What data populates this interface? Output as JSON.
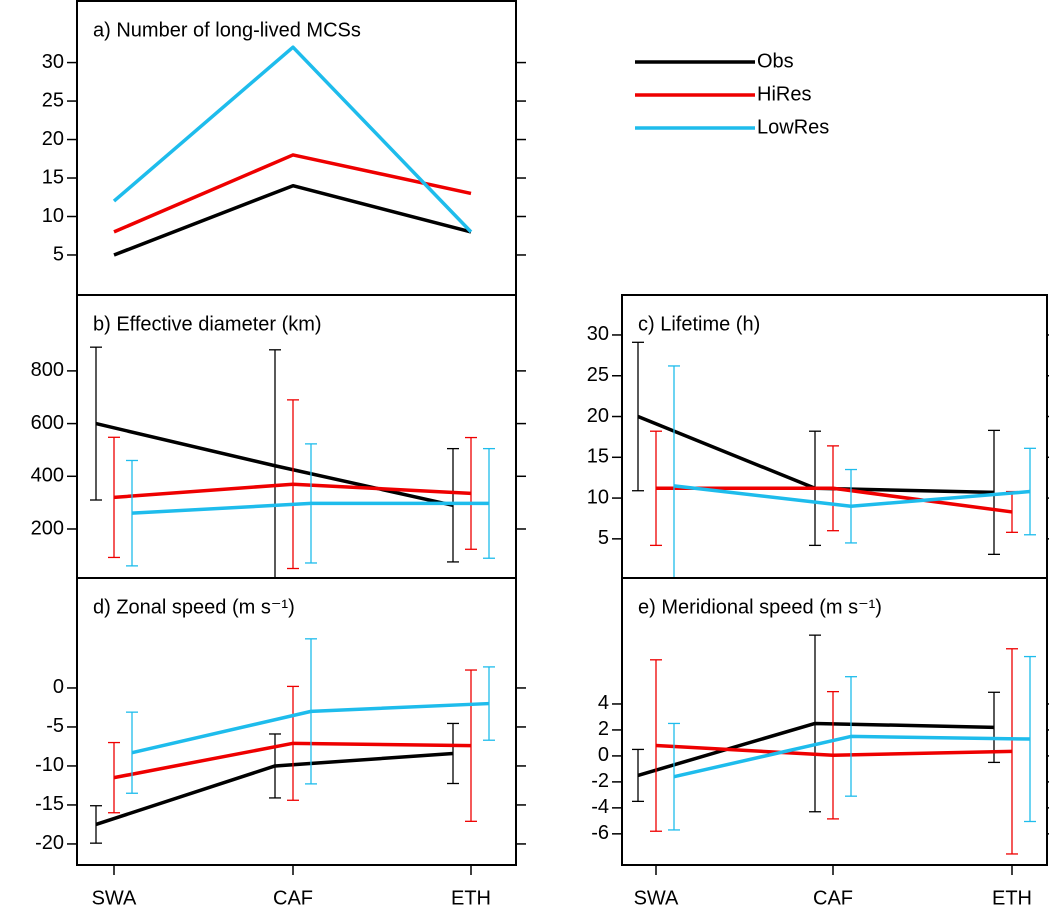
{
  "chart_data": [
    {
      "type": "line",
      "title": "a) Number of long-lived MCSs",
      "series": [
        {
          "name": "Obs",
          "color": "#000000",
          "values": [
            5,
            14,
            8
          ]
        },
        {
          "name": "HiRes",
          "color": "#ee0000",
          "values": [
            8,
            18,
            13
          ]
        },
        {
          "name": "LowRes",
          "color": "#1ebcec",
          "values": [
            12,
            32,
            8
          ]
        }
      ],
      "ylim": [
        -0.2,
        38
      ],
      "yticks": [
        5,
        10,
        15,
        20,
        25,
        30
      ]
    },
    {
      "type": "line",
      "title": "b) Effective diameter (km)",
      "series": [
        {
          "color": "#000000",
          "values": [
            600,
            440,
            290
          ],
          "errors": [
            290,
            440,
            215
          ]
        },
        {
          "color": "#ee0000",
          "values": [
            320,
            370,
            335
          ],
          "errors": [
            228,
            320,
            212
          ]
        },
        {
          "color": "#1ebcec",
          "values": [
            260,
            297,
            297
          ],
          "errors": [
            200,
            226,
            208
          ]
        }
      ],
      "ylim": [
        14,
        1088
      ],
      "yticks": [
        200,
        400,
        600,
        800
      ]
    },
    {
      "type": "line",
      "title": "c) Lifetime (h)",
      "series": [
        {
          "color": "#000000",
          "values": [
            20,
            11.2,
            10.7
          ],
          "errors": [
            9.1,
            7.0,
            7.6
          ]
        },
        {
          "color": "#ee0000",
          "values": [
            11.2,
            11.2,
            8.3
          ],
          "errors": [
            7.0,
            5.2,
            2.5
          ]
        },
        {
          "color": "#1ebcec",
          "values": [
            11.5,
            9.0,
            10.8
          ],
          "errors": [
            14.7,
            4.5,
            5.3
          ]
        }
      ],
      "ylim": [
        0.2,
        34.9
      ],
      "yticks": [
        5,
        10,
        15,
        20,
        25,
        30
      ]
    },
    {
      "type": "line",
      "title": "d) Zonal speed (m s⁻¹)",
      "categories": [
        "SWA",
        "CAF",
        "ETH"
      ],
      "series": [
        {
          "color": "#000000",
          "values": [
            -17.5,
            -10,
            -8.4
          ],
          "errors": [
            2.4,
            4.1,
            3.85
          ]
        },
        {
          "color": "#ee0000",
          "values": [
            -11.5,
            -7.1,
            -7.4
          ],
          "errors": [
            4.5,
            7.3,
            9.7
          ]
        },
        {
          "color": "#1ebcec",
          "values": [
            -8.3,
            -3,
            -2
          ],
          "errors": [
            5.2,
            9.3,
            4.7
          ]
        }
      ],
      "ylim": [
        -22.7,
        14.1
      ],
      "yticks": [
        -20,
        -15,
        -10,
        -5,
        0
      ]
    },
    {
      "type": "line",
      "title": "e) Meridional speed (m s⁻¹)",
      "categories": [
        "SWA",
        "CAF",
        "ETH"
      ],
      "series": [
        {
          "color": "#000000",
          "values": [
            -1.5,
            2.5,
            2.2
          ],
          "errors": [
            2.0,
            6.8,
            2.7
          ]
        },
        {
          "color": "#ee0000",
          "values": [
            0.8,
            0.05,
            0.35
          ],
          "errors": [
            6.6,
            4.9,
            7.9
          ]
        },
        {
          "color": "#1ebcec",
          "values": [
            -1.6,
            1.5,
            1.3
          ],
          "errors": [
            4.1,
            4.6,
            6.35
          ]
        }
      ],
      "ylim": [
        -8.4,
        13.7
      ],
      "yticks": [
        -6,
        -4,
        -2,
        0,
        2,
        4
      ]
    }
  ]
}
